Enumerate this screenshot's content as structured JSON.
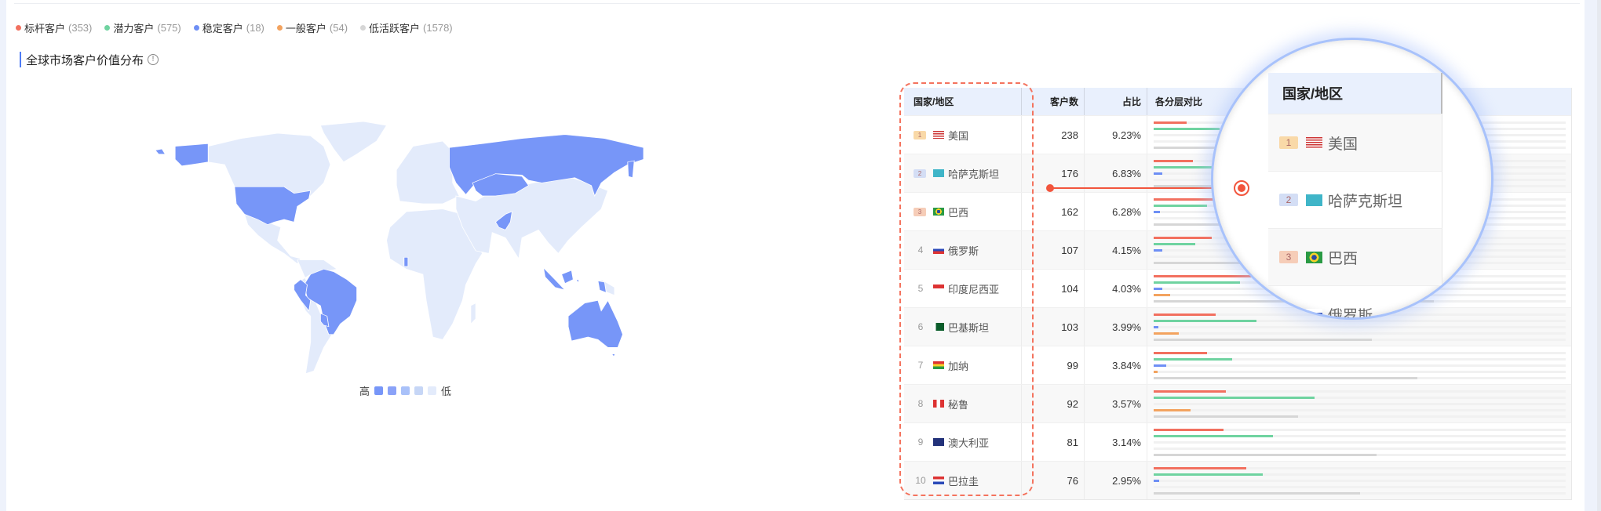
{
  "legend": [
    {
      "label": "标杆客户",
      "count": "(353)",
      "color": "#f2705f"
    },
    {
      "label": "潜力客户",
      "count": "(575)",
      "color": "#6fd3a0"
    },
    {
      "label": "稳定客户",
      "count": "(18)",
      "color": "#6e8ff5"
    },
    {
      "label": "一般客户",
      "count": "(54)",
      "color": "#f3a35f"
    },
    {
      "label": "低活跃客户",
      "count": "(1578)",
      "color": "#d6d6d6"
    }
  ],
  "section": {
    "title": "全球市场客户价值分布",
    "info_icon": "info-circle-icon"
  },
  "map": {
    "legend_high": "高",
    "legend_low": "低",
    "scale_colors": [
      "#7796f8",
      "#8aa2f8",
      "#a9c1f9",
      "#c6d6f6",
      "#e3ebfb"
    ],
    "highlighted_color": "#7796f8",
    "base_color": "#e3ebfb",
    "highlighted_countries": [
      "美国",
      "哈萨克斯坦",
      "巴西",
      "俄罗斯",
      "印度尼西亚",
      "巴基斯坦",
      "加纳",
      "秘鲁",
      "澳大利亚",
      "巴拉圭"
    ]
  },
  "table": {
    "headers": {
      "country": "国家/地区",
      "customers": "客户数",
      "ratio": "占比",
      "tiers": "各分层对比"
    },
    "rows": [
      {
        "rank": "1",
        "flag": "us",
        "country": "美国",
        "customers": "238",
        "ratio": "9.23%",
        "tiers": [
          8,
          16,
          0,
          0,
          55
        ]
      },
      {
        "rank": "2",
        "flag": "kz",
        "country": "哈萨克斯坦",
        "customers": "176",
        "ratio": "6.83%",
        "tiers": [
          9.5,
          14,
          2,
          0,
          45
        ]
      },
      {
        "rank": "3",
        "flag": "br",
        "country": "巴西",
        "customers": "162",
        "ratio": "6.28%",
        "tiers": [
          16,
          13,
          1.5,
          0,
          40
        ]
      },
      {
        "rank": "4",
        "flag": "ru",
        "country": "俄罗斯",
        "customers": "107",
        "ratio": "4.15%",
        "tiers": [
          14,
          10,
          2,
          0,
          52
        ]
      },
      {
        "rank": "5",
        "flag": "id",
        "country": "印度尼西亚",
        "customers": "104",
        "ratio": "4.03%",
        "tiers": [
          25,
          21,
          2,
          4,
          68
        ]
      },
      {
        "rank": "6",
        "flag": "pk",
        "country": "巴基斯坦",
        "customers": "103",
        "ratio": "3.99%",
        "tiers": [
          15,
          25,
          1.2,
          6,
          53
        ]
      },
      {
        "rank": "7",
        "flag": "gh",
        "country": "加纳",
        "customers": "99",
        "ratio": "3.84%",
        "tiers": [
          13,
          19,
          3,
          1,
          64
        ]
      },
      {
        "rank": "8",
        "flag": "pe",
        "country": "秘鲁",
        "customers": "92",
        "ratio": "3.57%",
        "tiers": [
          17.5,
          39,
          0,
          9,
          35
        ]
      },
      {
        "rank": "9",
        "flag": "au",
        "country": "澳大利亚",
        "customers": "81",
        "ratio": "3.14%",
        "tiers": [
          17,
          29,
          0,
          0,
          54
        ]
      },
      {
        "rank": "10",
        "flag": "py",
        "country": "巴拉圭",
        "customers": "76",
        "ratio": "2.95%",
        "tiers": [
          22.5,
          26.5,
          1.3,
          0,
          50
        ]
      }
    ],
    "crown_colors": {
      "1": "#f9d9a8",
      "2": "#d4def5",
      "3": "#f6cdb8"
    }
  }
}
